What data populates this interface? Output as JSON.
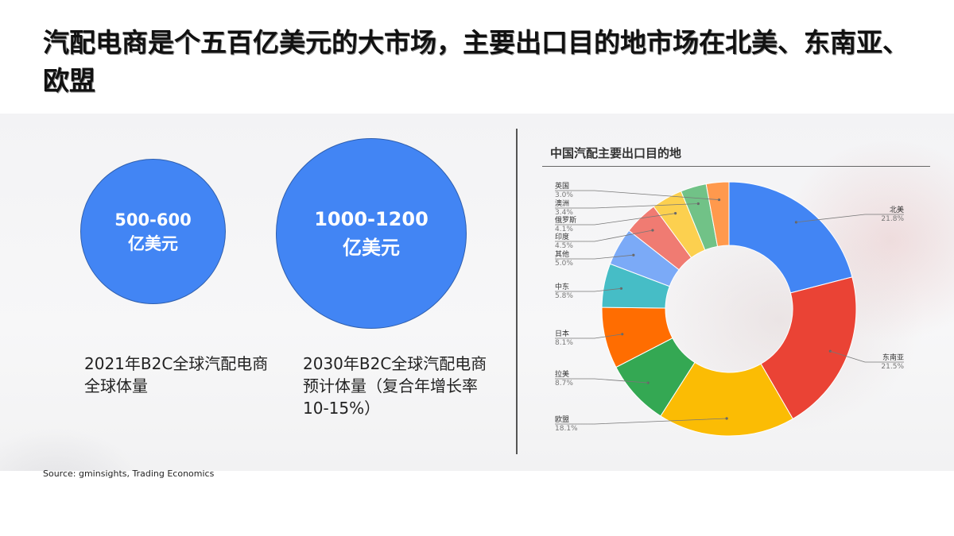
{
  "title": "汽配电商是个五百亿美元的大市场，主要出口目的地市场在北美、东南亚、欧盟",
  "bubbles": [
    {
      "value": "500-600",
      "unit": "亿美元",
      "caption": "2021年B2C全球汽配电商全球体量"
    },
    {
      "value": "1000-1200",
      "unit": "亿美元",
      "caption": "2030年B2C全球汽配电商预计体量（复合年增长率10-15%）"
    }
  ],
  "source": "Source: gminsights,  Trading Economics",
  "chart_data": {
    "type": "pie",
    "title": "中国汽配主要出口目的地",
    "slices": [
      {
        "label": "北美",
        "pct": "21.8%",
        "value": 21.8,
        "color": "#4285f4"
      },
      {
        "label": "东南亚",
        "pct": "21.5%",
        "value": 21.5,
        "color": "#ea4335"
      },
      {
        "label": "欧盟",
        "pct": "18.1%",
        "value": 18.1,
        "color": "#fbbc04"
      },
      {
        "label": "拉美",
        "pct": "8.7%",
        "value": 8.7,
        "color": "#34a853"
      },
      {
        "label": "日本",
        "pct": "8.1%",
        "value": 8.1,
        "color": "#ff6d01"
      },
      {
        "label": "中东",
        "pct": "5.8%",
        "value": 5.8,
        "color": "#46bdc6"
      },
      {
        "label": "其他",
        "pct": "5.0%",
        "value": 5.0,
        "color": "#7baaf7"
      },
      {
        "label": "印度",
        "pct": "4.5%",
        "value": 4.5,
        "color": "#f07b72"
      },
      {
        "label": "俄罗斯",
        "pct": "4.1%",
        "value": 4.1,
        "color": "#fcd04f"
      },
      {
        "label": "澳洲",
        "pct": "3.4%",
        "value": 3.4,
        "color": "#71c287"
      },
      {
        "label": "英国",
        "pct": "3.0%",
        "value": 3.0,
        "color": "#ff994d"
      }
    ]
  }
}
